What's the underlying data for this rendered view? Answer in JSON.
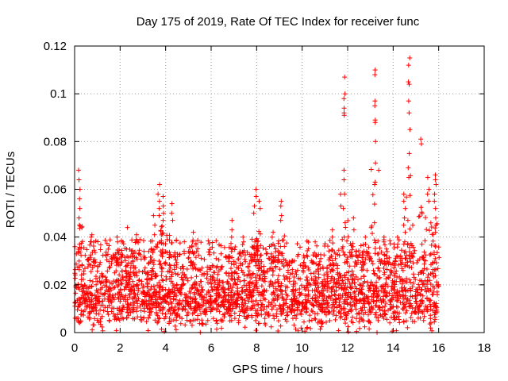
{
  "chart_data": {
    "type": "scatter",
    "title": "Day 175 of 2019, Rate Of TEC Index for receiver func",
    "xlabel": "GPS time / hours",
    "ylabel": "ROTI / TECUs",
    "xlim": [
      0,
      18
    ],
    "ylim": [
      0,
      0.12
    ],
    "grid": true,
    "marker": "+",
    "marker_color": "#ff0000",
    "x_ticks": [
      0,
      2,
      4,
      6,
      8,
      10,
      12,
      14,
      16,
      18
    ],
    "x_tick_labels": [
      "0",
      "2",
      "4",
      "6",
      "8",
      "10",
      "12",
      "14",
      "16",
      "18"
    ],
    "y_ticks": [
      0,
      0.02,
      0.04,
      0.06,
      0.08,
      0.1,
      0.12
    ],
    "y_tick_labels": [
      "0",
      "0.02",
      "0.04",
      "0.06",
      "0.08",
      "0.1",
      "0.12"
    ],
    "data_x_range": [
      0,
      16
    ],
    "background_band": {
      "min": 0.003,
      "typical_max": 0.035
    },
    "peaks": [
      {
        "x": 0.2,
        "values": [
          0.068,
          0.064,
          0.06,
          0.056,
          0.052,
          0.048,
          0.045
        ]
      },
      {
        "x": 0.75,
        "values": [
          0.041,
          0.04,
          0.038
        ]
      },
      {
        "x": 1.9,
        "values": [
          0.04,
          0.038
        ]
      },
      {
        "x": 2.35,
        "values": [
          0.044
        ]
      },
      {
        "x": 2.7,
        "values": [
          0.041,
          0.039
        ]
      },
      {
        "x": 3.5,
        "values": [
          0.049,
          0.045,
          0.041
        ]
      },
      {
        "x": 3.7,
        "values": [
          0.062,
          0.058,
          0.055,
          0.052,
          0.049
        ]
      },
      {
        "x": 3.9,
        "values": [
          0.057,
          0.053,
          0.05,
          0.047
        ]
      },
      {
        "x": 4.3,
        "values": [
          0.054,
          0.05,
          0.047
        ]
      },
      {
        "x": 5.2,
        "values": [
          0.042,
          0.038
        ]
      },
      {
        "x": 6.9,
        "values": [
          0.047,
          0.043,
          0.04
        ]
      },
      {
        "x": 7.4,
        "values": [
          0.04,
          0.038
        ]
      },
      {
        "x": 7.9,
        "values": [
          0.053,
          0.05
        ]
      },
      {
        "x": 8.0,
        "values": [
          0.06,
          0.057
        ]
      },
      {
        "x": 8.15,
        "values": [
          0.055,
          0.052
        ]
      },
      {
        "x": 8.7,
        "values": [
          0.042,
          0.04
        ]
      },
      {
        "x": 9.1,
        "values": [
          0.055,
          0.053,
          0.049,
          0.047
        ]
      },
      {
        "x": 10.6,
        "values": [
          0.038
        ]
      },
      {
        "x": 11.3,
        "values": [
          0.043,
          0.04
        ]
      },
      {
        "x": 11.85,
        "values": [
          0.107,
          0.1,
          0.098,
          0.094,
          0.092,
          0.091,
          0.068,
          0.064,
          0.058,
          0.052,
          0.046,
          0.04
        ]
      },
      {
        "x": 12.25,
        "values": [
          0.048,
          0.043
        ]
      },
      {
        "x": 12.8,
        "values": [
          0.04,
          0.037
        ]
      },
      {
        "x": 13.2,
        "values": [
          0.11,
          0.108,
          0.097,
          0.095,
          0.089,
          0.088,
          0.08,
          0.071,
          0.063,
          0.062,
          0.046
        ]
      },
      {
        "x": 13.6,
        "values": [
          0.04,
          0.038
        ]
      },
      {
        "x": 14.2,
        "values": [
          0.04
        ]
      },
      {
        "x": 14.5,
        "values": [
          0.058,
          0.055,
          0.052,
          0.048,
          0.045,
          0.042
        ]
      },
      {
        "x": 14.7,
        "values": [
          0.115,
          0.112,
          0.105,
          0.104,
          0.097,
          0.092,
          0.085,
          0.075,
          0.069,
          0.065
        ]
      },
      {
        "x": 15.25,
        "values": [
          0.081,
          0.079
        ]
      },
      {
        "x": 15.55,
        "values": [
          0.065,
          0.06,
          0.058,
          0.055
        ]
      },
      {
        "x": 15.85,
        "values": [
          0.066,
          0.064,
          0.062,
          0.058,
          0.055,
          0.052,
          0.048,
          0.045,
          0.042
        ]
      }
    ]
  }
}
